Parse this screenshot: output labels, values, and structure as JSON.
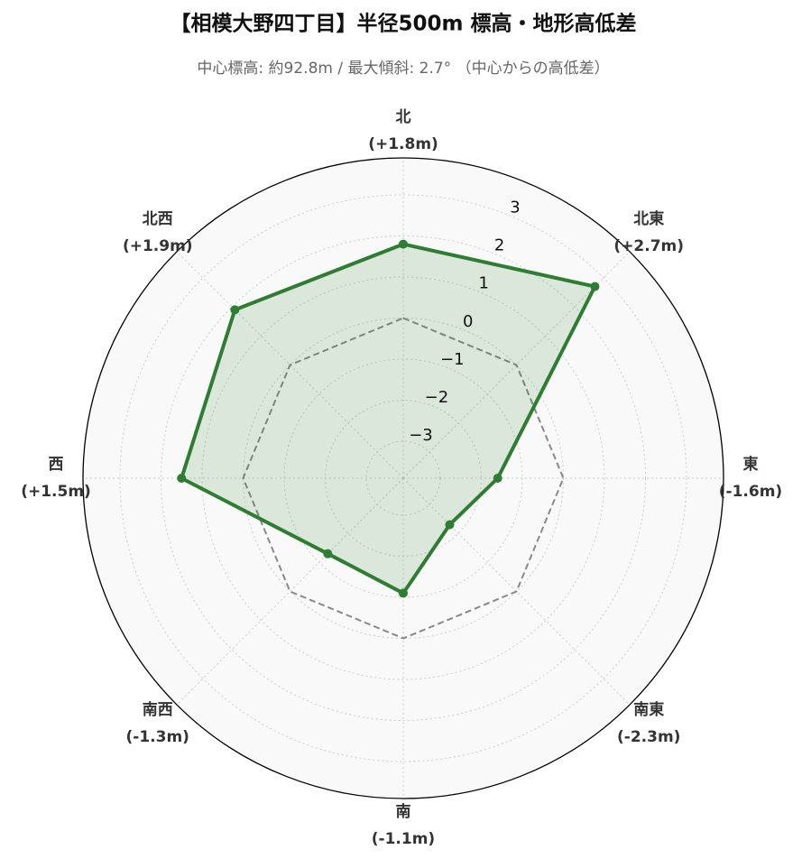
{
  "chart_data": {
    "type": "radar",
    "title": "【相模大野四丁目】半径500m 標高・地形高低差",
    "subtitle": "中心標高: 約92.8m / 最大傾斜: 2.7°  （中心からの高低差）",
    "categories": [
      "北",
      "北東",
      "東",
      "南東",
      "南",
      "南西",
      "西",
      "北西"
    ],
    "series": [
      {
        "color": "#2e7d32",
        "values": [
          1.8,
          2.7,
          -1.6,
          -2.3,
          -1.1,
          -1.3,
          1.5,
          1.9
        ],
        "value_labels": [
          "(+1.8m)",
          "(+2.7m)",
          "(-1.6m)",
          "(-2.3m)",
          "(-1.1m)",
          "(-1.3m)",
          "(+1.5m)",
          "(+1.9m)"
        ]
      }
    ],
    "reference_line": 0,
    "ylim": [
      -3.9,
      3.9
    ],
    "yticks": [
      {
        "value": -3,
        "label": "−3"
      },
      {
        "value": -2,
        "label": "−2"
      },
      {
        "value": -1,
        "label": "−1"
      },
      0,
      1,
      2,
      3
    ],
    "grid": true
  }
}
